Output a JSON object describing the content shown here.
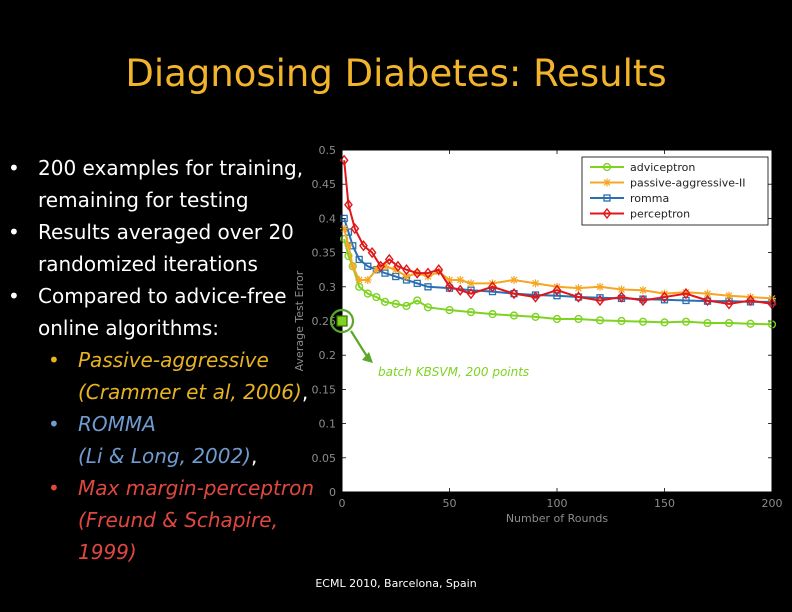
{
  "slide": {
    "title": "Diagnosing Diabetes: Results",
    "footer": "ECML 2010, Barcelona, Spain",
    "bullets": [
      "200 examples for training, remaining for testing",
      "Results averaged over 20 randomized iterations",
      "Compared to advice-free online algorithms:"
    ],
    "sub_bullets": [
      {
        "name": "Passive-aggressive",
        "cite": "(Crammer et al, 2006)",
        "trail": ","
      },
      {
        "name": "ROMMA",
        "cite": "(Li & Long, 2002)",
        "trail": ","
      },
      {
        "name": "Max margin-perceptron",
        "cite": "(Freund & Schapire, 1999)",
        "trail": ""
      }
    ],
    "bullet_symbol": "•"
  },
  "colors": {
    "title": "#f2b42a",
    "adviceptron": "#7ed321",
    "passive_aggressive": "#f5a623",
    "romma": "#2a6fb0",
    "perceptron": "#e0161a"
  },
  "chart_data": {
    "type": "line",
    "xlabel": "Number of Rounds",
    "ylabel": "Average Test Error",
    "xlim": [
      0,
      200
    ],
    "ylim": [
      0,
      0.5
    ],
    "xticks": [
      "0",
      "50",
      "100",
      "150",
      "200"
    ],
    "yticks": [
      "0",
      "0.05",
      "0.1",
      "0.15",
      "0.2",
      "0.25",
      "0.3",
      "0.35",
      "0.4",
      "0.45",
      "0.5"
    ],
    "legend_position": "top-right",
    "series": [
      {
        "name": "adviceptron",
        "marker": "circle",
        "x": [
          1,
          3,
          5,
          8,
          12,
          16,
          20,
          25,
          30,
          35,
          40,
          50,
          60,
          70,
          80,
          90,
          100,
          110,
          120,
          130,
          140,
          150,
          160,
          170,
          180,
          190,
          200
        ],
        "y": [
          0.37,
          0.345,
          0.33,
          0.3,
          0.29,
          0.285,
          0.278,
          0.275,
          0.272,
          0.28,
          0.27,
          0.266,
          0.263,
          0.26,
          0.258,
          0.256,
          0.253,
          0.253,
          0.251,
          0.25,
          0.249,
          0.248,
          0.249,
          0.247,
          0.247,
          0.246,
          0.245
        ]
      },
      {
        "name": "passive-aggressive-II",
        "marker": "star",
        "x": [
          1,
          3,
          5,
          8,
          12,
          16,
          20,
          25,
          30,
          35,
          40,
          45,
          50,
          55,
          60,
          70,
          80,
          90,
          100,
          110,
          120,
          130,
          140,
          150,
          160,
          170,
          180,
          190,
          200
        ],
        "y": [
          0.385,
          0.36,
          0.33,
          0.31,
          0.31,
          0.325,
          0.33,
          0.325,
          0.315,
          0.32,
          0.315,
          0.322,
          0.31,
          0.31,
          0.305,
          0.305,
          0.31,
          0.305,
          0.3,
          0.298,
          0.3,
          0.296,
          0.295,
          0.29,
          0.292,
          0.29,
          0.287,
          0.285,
          0.283
        ]
      },
      {
        "name": "romma",
        "marker": "square",
        "x": [
          1,
          3,
          5,
          8,
          12,
          16,
          20,
          25,
          30,
          35,
          40,
          50,
          60,
          70,
          80,
          90,
          100,
          110,
          120,
          130,
          140,
          150,
          160,
          170,
          180,
          190,
          200
        ],
        "y": [
          0.4,
          0.38,
          0.36,
          0.34,
          0.33,
          0.325,
          0.32,
          0.315,
          0.31,
          0.305,
          0.3,
          0.298,
          0.295,
          0.293,
          0.29,
          0.288,
          0.287,
          0.285,
          0.284,
          0.283,
          0.282,
          0.281,
          0.28,
          0.279,
          0.279,
          0.278,
          0.278
        ]
      },
      {
        "name": "perceptron",
        "marker": "diamond",
        "x": [
          1,
          3,
          6,
          10,
          14,
          18,
          22,
          26,
          30,
          35,
          40,
          45,
          50,
          55,
          60,
          70,
          80,
          90,
          100,
          110,
          120,
          130,
          140,
          150,
          160,
          170,
          180,
          190,
          200
        ],
        "y": [
          0.485,
          0.42,
          0.385,
          0.36,
          0.35,
          0.33,
          0.34,
          0.33,
          0.325,
          0.32,
          0.32,
          0.325,
          0.3,
          0.295,
          0.29,
          0.3,
          0.29,
          0.285,
          0.295,
          0.285,
          0.28,
          0.285,
          0.28,
          0.285,
          0.29,
          0.28,
          0.275,
          0.28,
          0.275
        ]
      }
    ],
    "annotation": {
      "label": "batch KBSVM, 200 points",
      "x": 0,
      "y": 0.25
    }
  }
}
